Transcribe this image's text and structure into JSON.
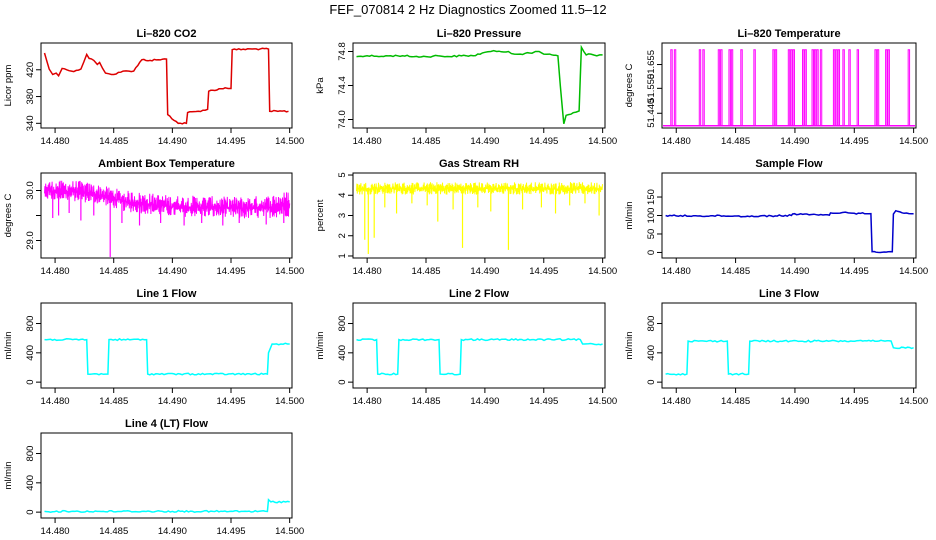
{
  "page_title": "FEF_070814  2 Hz Diagnostics Zoomed 11.5–12",
  "chart_data": [
    {
      "type": "line",
      "title": "Li–820 CO2",
      "ylabel": "Licor ppm",
      "color": "#dd0000",
      "xlim": [
        14.4788,
        14.5002
      ],
      "ylim": [
        333,
        460
      ],
      "xticks": [
        14.48,
        14.485,
        14.49,
        14.495,
        14.5
      ],
      "xtick_labels": [
        "14.480",
        "14.485",
        "14.490",
        "14.495",
        "14.500"
      ],
      "yticks": [
        340,
        380,
        420
      ],
      "ytick_labels": [
        "340",
        "380",
        "420"
      ],
      "x": [
        14.4791,
        14.4795,
        14.4798,
        14.4801,
        14.4803,
        14.4806,
        14.481,
        14.4814,
        14.4818,
        14.4822,
        14.4827,
        14.4829,
        14.4833,
        14.4836,
        14.4838,
        14.4843,
        14.4846,
        14.485,
        14.4854,
        14.4858,
        14.4863,
        14.4867,
        14.4874,
        14.4881,
        14.4888,
        14.4895,
        14.4896,
        14.4905,
        14.4912,
        14.4913,
        14.4922,
        14.493,
        14.4931,
        14.4945,
        14.495,
        14.4951,
        14.4968,
        14.4982,
        14.4983,
        14.499,
        14.4999
      ],
      "y": [
        445,
        421,
        413,
        415,
        411,
        422,
        420,
        418,
        419,
        421,
        443,
        437,
        434,
        428,
        431,
        415,
        414,
        413,
        416,
        418,
        418,
        418,
        435,
        434,
        435,
        436,
        353,
        340,
        340,
        356,
        358,
        361,
        388,
        393,
        392,
        450,
        451,
        451,
        358,
        358,
        358
      ]
    },
    {
      "type": "line",
      "title": "Li–820 Pressure",
      "ylabel": "kPa",
      "color": "#00bb00",
      "xlim": [
        14.4788,
        14.5002
      ],
      "ylim": [
        73.9,
        74.9
      ],
      "xticks": [
        14.48,
        14.485,
        14.49,
        14.495,
        14.5
      ],
      "xtick_labels": [
        "14.480",
        "14.485",
        "14.490",
        "14.495",
        "14.500"
      ],
      "yticks": [
        74.0,
        74.4,
        74.8
      ],
      "ytick_labels": [
        "74.0",
        "74.4",
        "74.8"
      ],
      "x": [
        14.4791,
        14.48,
        14.481,
        14.482,
        14.483,
        14.484,
        14.485,
        14.486,
        14.487,
        14.488,
        14.489,
        14.49,
        14.4905,
        14.491,
        14.492,
        14.4925,
        14.493,
        14.494,
        14.4943,
        14.4946,
        14.495,
        14.4955,
        14.4962,
        14.4964,
        14.4966,
        14.4967,
        14.4968,
        14.4969,
        14.4975,
        14.498,
        14.4981,
        14.4982,
        14.4984,
        14.4986,
        14.499,
        14.4995,
        14.5
      ],
      "y": [
        74.74,
        74.75,
        74.74,
        74.75,
        74.75,
        74.74,
        74.74,
        74.75,
        74.74,
        74.75,
        74.75,
        74.79,
        74.8,
        74.8,
        74.8,
        74.77,
        74.77,
        74.78,
        74.8,
        74.8,
        74.77,
        74.77,
        74.75,
        74.4,
        74.1,
        73.95,
        74.0,
        74.05,
        74.08,
        74.1,
        74.5,
        74.85,
        74.8,
        74.76,
        74.77,
        74.75,
        74.76
      ]
    },
    {
      "type": "line",
      "title": "Li–820 Temperature",
      "ylabel": "degrees C",
      "color": "#ff00ff",
      "xlim": [
        14.4788,
        14.5002
      ],
      "ylim": [
        51.375,
        51.75
      ],
      "xticks": [
        14.48,
        14.485,
        14.49,
        14.495,
        14.5
      ],
      "xtick_labels": [
        "14.480",
        "14.485",
        "14.490",
        "14.495",
        "14.500"
      ],
      "yticks": [
        51.44,
        51.55,
        51.655
      ],
      "ytick_labels": [
        "51.440",
        "51.550",
        "51.655"
      ],
      "baseline": 51.385,
      "peak": 51.72,
      "spikes_x": [
        14.4796,
        14.4799,
        14.482,
        14.4823,
        14.4836,
        14.4838,
        14.4845,
        14.4847,
        14.4855,
        14.4866,
        14.4882,
        14.4884,
        14.4895,
        14.4897,
        14.4899,
        14.4907,
        14.4909,
        14.4915,
        14.4917,
        14.4919,
        14.4922,
        14.4933,
        14.4935,
        14.4937,
        14.4941,
        14.4946,
        14.4953,
        14.4968,
        14.497,
        14.4977,
        14.4979,
        14.4996
      ]
    },
    {
      "type": "line",
      "title": "Ambient Box Temperature",
      "ylabel": "degrees C",
      "color": "#ff00ff",
      "xlim": [
        14.4788,
        14.5002
      ],
      "ylim": [
        28.65,
        30.35
      ],
      "xticks": [
        14.48,
        14.485,
        14.49,
        14.495,
        14.5
      ],
      "xtick_labels": [
        "14.480",
        "14.485",
        "14.490",
        "14.495",
        "14.500"
      ],
      "yticks": [
        29.0,
        29.5,
        30.0
      ],
      "ytick_labels": [
        "29.0",
        "",
        "30.0"
      ],
      "band": [
        [
          14.4791,
          29.8,
          30.2
        ],
        [
          14.482,
          29.75,
          30.2
        ],
        [
          14.484,
          29.7,
          30.1
        ],
        [
          14.486,
          29.55,
          30.0
        ],
        [
          14.488,
          29.5,
          29.95
        ],
        [
          14.49,
          29.45,
          29.9
        ],
        [
          14.492,
          29.45,
          29.9
        ],
        [
          14.494,
          29.42,
          29.88
        ],
        [
          14.496,
          29.4,
          29.88
        ],
        [
          14.498,
          29.42,
          29.9
        ],
        [
          14.5,
          29.45,
          30.0
        ]
      ],
      "dips": [
        [
          14.4798,
          29.45
        ],
        [
          14.4803,
          29.5
        ],
        [
          14.4812,
          29.55
        ],
        [
          14.4822,
          29.4
        ],
        [
          14.4833,
          29.5
        ],
        [
          14.4847,
          28.65
        ],
        [
          14.4857,
          29.35
        ],
        [
          14.4872,
          29.3
        ],
        [
          14.489,
          29.35
        ],
        [
          14.491,
          29.3
        ],
        [
          14.4925,
          29.35
        ],
        [
          14.4943,
          29.3
        ],
        [
          14.4957,
          29.35
        ],
        [
          14.498,
          29.32
        ],
        [
          14.4995,
          29.35
        ]
      ]
    },
    {
      "type": "line",
      "title": "Gas Stream RH",
      "ylabel": "percent",
      "color": "#ffff00",
      "xlim": [
        14.4788,
        14.5002
      ],
      "ylim": [
        0.9,
        5.1
      ],
      "xticks": [
        14.48,
        14.485,
        14.49,
        14.495,
        14.5
      ],
      "xtick_labels": [
        "14.480",
        "14.485",
        "14.490",
        "14.495",
        "14.500"
      ],
      "yticks": [
        1,
        2,
        3,
        4,
        5
      ],
      "ytick_labels": [
        "1",
        "2",
        "3",
        "4",
        "5"
      ],
      "band": [
        [
          14.4791,
          4.0,
          4.65
        ],
        [
          14.485,
          4.0,
          4.65
        ],
        [
          14.49,
          4.0,
          4.65
        ],
        [
          14.495,
          4.0,
          4.65
        ],
        [
          14.5,
          4.0,
          4.65
        ]
      ],
      "dips": [
        [
          14.4798,
          1.8
        ],
        [
          14.4801,
          1.1
        ],
        [
          14.4806,
          1.9
        ],
        [
          14.4815,
          3.4
        ],
        [
          14.4825,
          3.1
        ],
        [
          14.4838,
          3.6
        ],
        [
          14.4851,
          3.5
        ],
        [
          14.486,
          2.7
        ],
        [
          14.4873,
          3.3
        ],
        [
          14.4881,
          1.4
        ],
        [
          14.4894,
          3.4
        ],
        [
          14.4905,
          3.2
        ],
        [
          14.492,
          1.3
        ],
        [
          14.4932,
          3.3
        ],
        [
          14.4948,
          3.4
        ],
        [
          14.496,
          3.1
        ],
        [
          14.4972,
          3.5
        ],
        [
          14.4985,
          3.6
        ],
        [
          14.4997,
          3.0
        ]
      ]
    },
    {
      "type": "line",
      "title": "Sample Flow",
      "ylabel": "ml/min",
      "color": "#0000cc",
      "xlim": [
        14.4788,
        14.5002
      ],
      "ylim": [
        -15,
        215
      ],
      "xticks": [
        14.48,
        14.485,
        14.49,
        14.495,
        14.5
      ],
      "xtick_labels": [
        "14.480",
        "14.485",
        "14.490",
        "14.495",
        "14.500"
      ],
      "yticks": [
        0,
        50,
        100,
        150
      ],
      "ytick_labels": [
        "0",
        "50",
        "100",
        "150"
      ],
      "x": [
        14.4791,
        14.48,
        14.482,
        14.484,
        14.486,
        14.488,
        14.4897,
        14.4898,
        14.491,
        14.4912,
        14.492,
        14.4929,
        14.493,
        14.494,
        14.4945,
        14.495,
        14.4964,
        14.4965,
        14.4982,
        14.4983,
        14.4985,
        14.4992,
        14.5
      ],
      "y": [
        100,
        99,
        99,
        99,
        98,
        99,
        100,
        104,
        104,
        102,
        101,
        101,
        107,
        108,
        107,
        106,
        105,
        2,
        2,
        104,
        113,
        106,
        105
      ]
    },
    {
      "type": "line",
      "title": "Line 1 Flow",
      "ylabel": "ml/min",
      "color": "#00ffff",
      "xlim": [
        14.4788,
        14.5002
      ],
      "ylim": [
        -80,
        1080
      ],
      "xticks": [
        14.48,
        14.485,
        14.49,
        14.495,
        14.5
      ],
      "xtick_labels": [
        "14.480",
        "14.485",
        "14.490",
        "14.495",
        "14.500"
      ],
      "yticks": [
        0,
        400,
        800
      ],
      "ytick_labels": [
        "0",
        "400",
        "800"
      ],
      "x": [
        14.4791,
        14.4815,
        14.4827,
        14.4828,
        14.4845,
        14.4846,
        14.4878,
        14.4879,
        14.4981,
        14.4982,
        14.4985,
        14.5
      ],
      "y": [
        580,
        580,
        580,
        110,
        110,
        580,
        580,
        110,
        110,
        400,
        520,
        520
      ]
    },
    {
      "type": "line",
      "title": "Line 2 Flow",
      "ylabel": "ml/min",
      "color": "#00ffff",
      "xlim": [
        14.4788,
        14.5002
      ],
      "ylim": [
        -80,
        1080
      ],
      "xticks": [
        14.48,
        14.485,
        14.49,
        14.495,
        14.5
      ],
      "xtick_labels": [
        "14.480",
        "14.485",
        "14.490",
        "14.495",
        "14.500"
      ],
      "yticks": [
        0,
        400,
        800
      ],
      "ytick_labels": [
        "0",
        "400",
        "800"
      ],
      "x": [
        14.4791,
        14.4808,
        14.4809,
        14.4826,
        14.4827,
        14.4861,
        14.4862,
        14.4879,
        14.488,
        14.4981,
        14.4983,
        14.5
      ],
      "y": [
        580,
        580,
        110,
        110,
        580,
        580,
        110,
        110,
        580,
        580,
        520,
        520
      ]
    },
    {
      "type": "line",
      "title": "Line 3 Flow",
      "ylabel": "ml/min",
      "color": "#00ffff",
      "xlim": [
        14.4788,
        14.5002
      ],
      "ylim": [
        -80,
        1080
      ],
      "xticks": [
        14.48,
        14.485,
        14.49,
        14.495,
        14.5
      ],
      "xtick_labels": [
        "14.480",
        "14.485",
        "14.490",
        "14.495",
        "14.500"
      ],
      "yticks": [
        0,
        400,
        800
      ],
      "ytick_labels": [
        "0",
        "400",
        "800"
      ],
      "x": [
        14.4791,
        14.4809,
        14.481,
        14.4843,
        14.4844,
        14.4861,
        14.4862,
        14.4981,
        14.4983,
        14.5
      ],
      "y": [
        110,
        110,
        560,
        560,
        110,
        110,
        560,
        560,
        470,
        470
      ]
    },
    {
      "type": "line",
      "title": "Line 4 (LT) Flow",
      "ylabel": "ml/min",
      "color": "#00ffff",
      "xlim": [
        14.4788,
        14.5002
      ],
      "ylim": [
        -80,
        1080
      ],
      "xticks": [
        14.48,
        14.485,
        14.49,
        14.495,
        14.5
      ],
      "xtick_labels": [
        "14.480",
        "14.485",
        "14.490",
        "14.495",
        "14.500"
      ],
      "yticks": [
        0,
        400,
        800
      ],
      "ytick_labels": [
        "0",
        "400",
        "800"
      ],
      "x": [
        14.4791,
        14.49,
        14.4981,
        14.4982,
        14.4984,
        14.5
      ],
      "y": [
        10,
        10,
        10,
        170,
        140,
        140
      ]
    }
  ]
}
